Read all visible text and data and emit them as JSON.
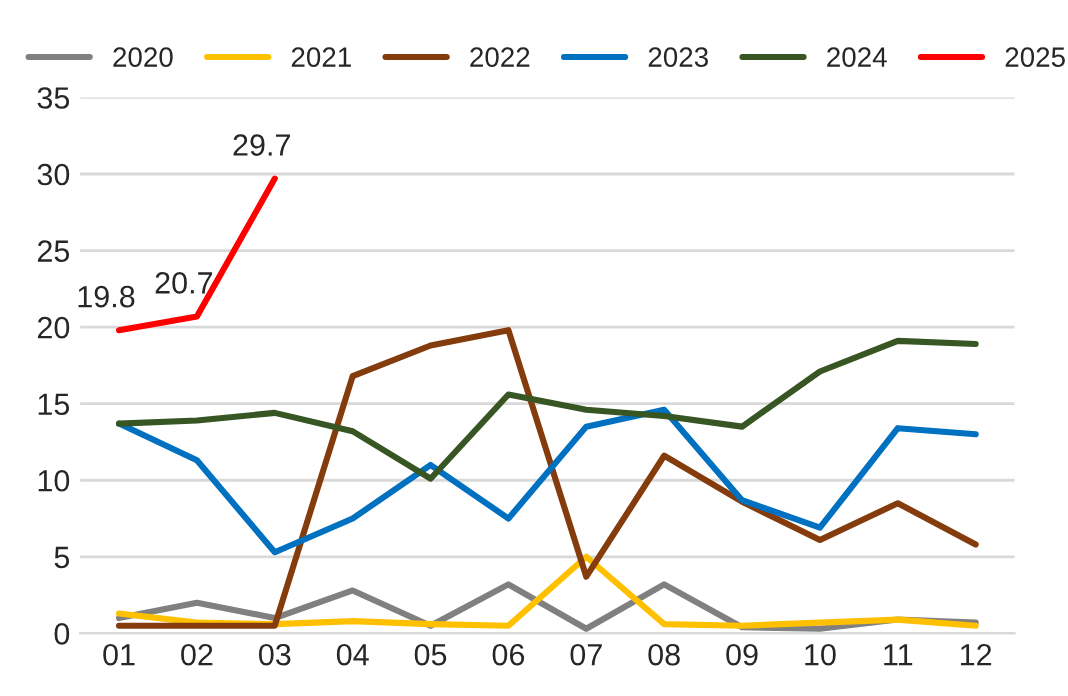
{
  "chart_data": {
    "type": "line",
    "categories": [
      "01",
      "02",
      "03",
      "04",
      "05",
      "06",
      "07",
      "08",
      "09",
      "10",
      "11",
      "12"
    ],
    "series": [
      {
        "name": "2020",
        "color": "#808080",
        "values": [
          1.0,
          2.0,
          1.0,
          2.8,
          0.5,
          3.2,
          0.3,
          3.2,
          0.4,
          0.3,
          0.9,
          0.7
        ]
      },
      {
        "name": "2021",
        "color": "#ffc000",
        "values": [
          1.3,
          0.7,
          0.6,
          0.8,
          0.6,
          0.5,
          5.0,
          0.6,
          0.5,
          0.7,
          0.9,
          0.5
        ]
      },
      {
        "name": "2022",
        "color": "#843c0c",
        "values": [
          0.5,
          0.5,
          0.5,
          16.8,
          18.8,
          19.8,
          3.7,
          11.6,
          8.6,
          6.1,
          8.5,
          5.8
        ]
      },
      {
        "name": "2023",
        "color": "#0070c0",
        "values": [
          13.7,
          11.3,
          5.3,
          7.5,
          11.0,
          7.5,
          13.5,
          14.6,
          8.7,
          6.9,
          13.4,
          13.0
        ]
      },
      {
        "name": "2024",
        "color": "#375623",
        "values": [
          13.7,
          13.9,
          14.4,
          13.2,
          10.1,
          15.6,
          14.6,
          14.2,
          13.5,
          17.1,
          19.1,
          18.9
        ]
      },
      {
        "name": "2025",
        "color": "#ff0000",
        "values": [
          19.8,
          20.7,
          29.7,
          null,
          null,
          null,
          null,
          null,
          null,
          null,
          null,
          null
        ],
        "value_labels": [
          "19.8",
          "20.7",
          "29.7",
          null,
          null,
          null,
          null,
          null,
          null,
          null,
          null,
          null
        ]
      }
    ],
    "ylim": [
      0,
      35
    ],
    "yticks": [
      0,
      5,
      10,
      15,
      20,
      25,
      30,
      35
    ],
    "grid": "y",
    "legend": "top",
    "line_style": "solid",
    "marker": "none"
  }
}
